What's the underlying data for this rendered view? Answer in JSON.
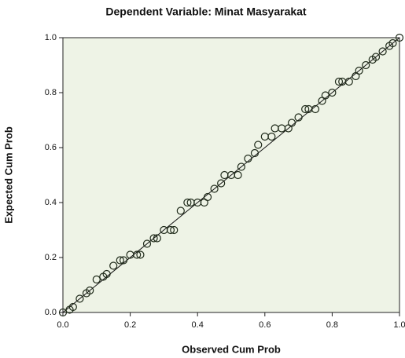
{
  "chart_data": {
    "type": "scatter",
    "title": "Dependent Variable: Minat Masyarakat",
    "x_label": "Observed Cum Prob",
    "y_label": "Expected Cum Prob",
    "color": "#1f2a1a",
    "xlim": [
      0,
      1
    ],
    "ylim": [
      0,
      1
    ],
    "xticks": [
      {
        "value": 0,
        "label": "0.0"
      },
      {
        "value": 0.2,
        "label": "0.2"
      },
      {
        "value": 0.4,
        "label": "0.4"
      },
      {
        "value": 0.6,
        "label": "0.6"
      },
      {
        "value": 0.8,
        "label": "0.8"
      },
      {
        "value": 1,
        "label": "1.0"
      }
    ],
    "yticks": [
      {
        "value": 0,
        "label": "0.0"
      },
      {
        "value": 0.2,
        "label": "0.2"
      },
      {
        "value": 0.4,
        "label": "0.4"
      },
      {
        "value": 0.6,
        "label": "0.6"
      },
      {
        "value": 0.8,
        "label": "0.8"
      },
      {
        "value": 1,
        "label": "1.0"
      }
    ],
    "x": [
      0.0,
      0.02,
      0.03,
      0.05,
      0.07,
      0.08,
      0.1,
      0.12,
      0.13,
      0.15,
      0.17,
      0.18,
      0.2,
      0.22,
      0.23,
      0.25,
      0.27,
      0.28,
      0.3,
      0.32,
      0.33,
      0.35,
      0.37,
      0.38,
      0.4,
      0.42,
      0.43,
      0.45,
      0.47,
      0.48,
      0.5,
      0.52,
      0.53,
      0.55,
      0.57,
      0.58,
      0.6,
      0.62,
      0.63,
      0.65,
      0.67,
      0.68,
      0.7,
      0.72,
      0.73,
      0.75,
      0.77,
      0.78,
      0.8,
      0.82,
      0.83,
      0.85,
      0.87,
      0.88,
      0.9,
      0.92,
      0.93,
      0.95,
      0.97,
      0.98,
      1.0
    ],
    "values": [
      0.0,
      0.01,
      0.02,
      0.05,
      0.07,
      0.08,
      0.12,
      0.13,
      0.14,
      0.17,
      0.19,
      0.19,
      0.21,
      0.21,
      0.21,
      0.25,
      0.27,
      0.27,
      0.3,
      0.3,
      0.3,
      0.37,
      0.4,
      0.4,
      0.4,
      0.4,
      0.42,
      0.45,
      0.47,
      0.5,
      0.5,
      0.5,
      0.53,
      0.56,
      0.58,
      0.61,
      0.64,
      0.64,
      0.67,
      0.67,
      0.67,
      0.69,
      0.71,
      0.74,
      0.74,
      0.74,
      0.77,
      0.79,
      0.8,
      0.84,
      0.84,
      0.84,
      0.86,
      0.88,
      0.9,
      0.92,
      0.93,
      0.95,
      0.97,
      0.98,
      1.0
    ]
  }
}
